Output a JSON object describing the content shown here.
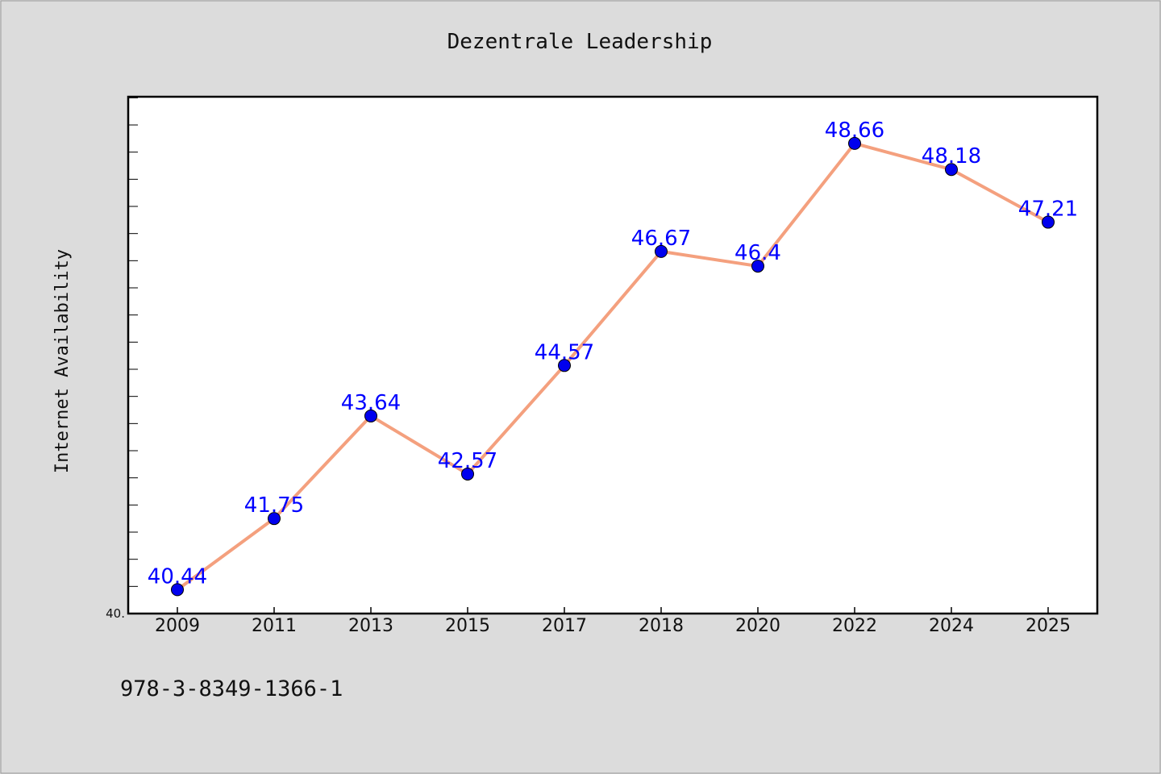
{
  "chart_data": {
    "type": "line",
    "title": "Dezentrale Leadership",
    "xlabel": "",
    "ylabel": "Internet Availability",
    "categories": [
      "2009",
      "2011",
      "2013",
      "2015",
      "2017",
      "2018",
      "2020",
      "2022",
      "2024",
      "2025"
    ],
    "series": [
      {
        "values": [
          40.44,
          41.75,
          43.64,
          42.57,
          44.57,
          46.67,
          46.4,
          48.66,
          48.18,
          47.21
        ]
      }
    ],
    "data_labels": [
      "40.44",
      "41.75",
      "43.64",
      "42.57",
      "44.57",
      "46.67",
      "46.4",
      "48.66",
      "48.18",
      "47.21"
    ],
    "ylim": [
      40.0,
      49.52
    ],
    "y_tick_labels": [
      "40."
    ],
    "grid": false,
    "legend": "none",
    "colors": {
      "line": "#f4a07e",
      "marker": "#0000ee",
      "label": "#0000ff",
      "background": "#dcdcdc",
      "plot_background": "#ffffff"
    }
  },
  "footer": {
    "isbn": "978-3-8349-1366-1"
  }
}
